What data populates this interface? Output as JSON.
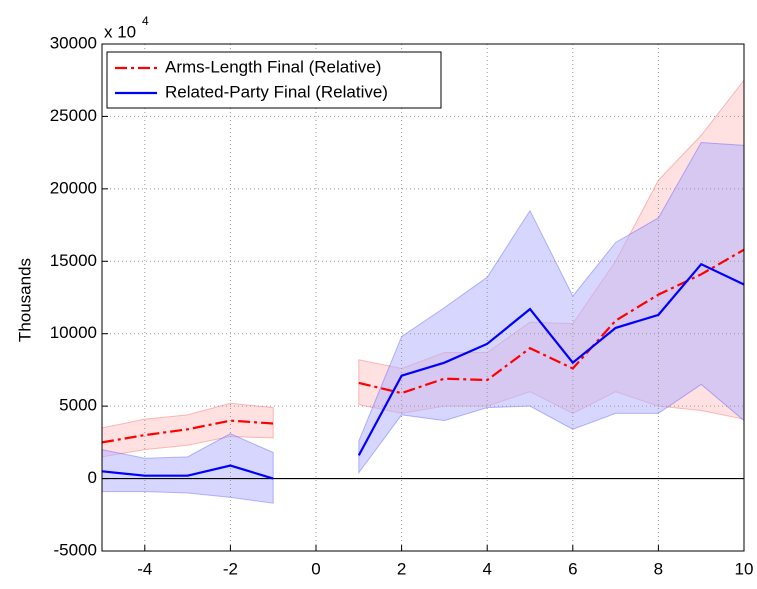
{
  "chart_data": {
    "type": "line",
    "ylabel": "Thousands",
    "exponent_label": "x 10",
    "exponent": "4",
    "x": [
      -5,
      -4,
      -3,
      -2,
      -1,
      0,
      1,
      2,
      3,
      4,
      5,
      6,
      7,
      8,
      9,
      10
    ],
    "series": [
      {
        "name": "Arms-Length Final (Relative)",
        "color": "#ff0000",
        "band_color": "#ffc8c8",
        "dash": "dashdot",
        "values": [
          2500,
          3000,
          3400,
          4000,
          3800,
          null,
          6600,
          5900,
          6900,
          6800,
          9000,
          7600,
          10900,
          12700,
          14100,
          15800
        ],
        "upper": [
          3500,
          4100,
          4400,
          5200,
          4900,
          null,
          8200,
          7600,
          8700,
          8700,
          10800,
          10700,
          15000,
          20600,
          23700,
          27500
        ],
        "lower": [
          1500,
          2000,
          2300,
          2900,
          2800,
          null,
          5100,
          4500,
          5000,
          5000,
          6000,
          4500,
          6000,
          5000,
          4700,
          4100
        ]
      },
      {
        "name": "Related-Party Final (Relative)",
        "color": "#0000ff",
        "band_color": "#b4b4ff",
        "dash": "solid",
        "values": [
          500,
          200,
          200,
          900,
          0,
          null,
          1600,
          7100,
          8000,
          9300,
          11700,
          8000,
          10400,
          11300,
          14800,
          13400
        ],
        "upper": [
          2000,
          1400,
          1500,
          3100,
          1800,
          null,
          2600,
          9800,
          11800,
          13900,
          18500,
          12600,
          16300,
          18000,
          23200,
          23000
        ],
        "lower": [
          -900,
          -900,
          -1000,
          -1300,
          -1700,
          null,
          400,
          4400,
          4000,
          4900,
          5000,
          3400,
          4500,
          4500,
          6500,
          4000
        ]
      }
    ],
    "xlim": [
      -5,
      10
    ],
    "xticks": [
      -4,
      -2,
      0,
      2,
      4,
      6,
      8,
      10
    ],
    "ylim": [
      -5000,
      30000
    ],
    "yticks": [
      -5000,
      0,
      5000,
      10000,
      15000,
      20000,
      25000,
      30000
    ],
    "grid": true,
    "zero_line": true,
    "legend": "top-left"
  }
}
